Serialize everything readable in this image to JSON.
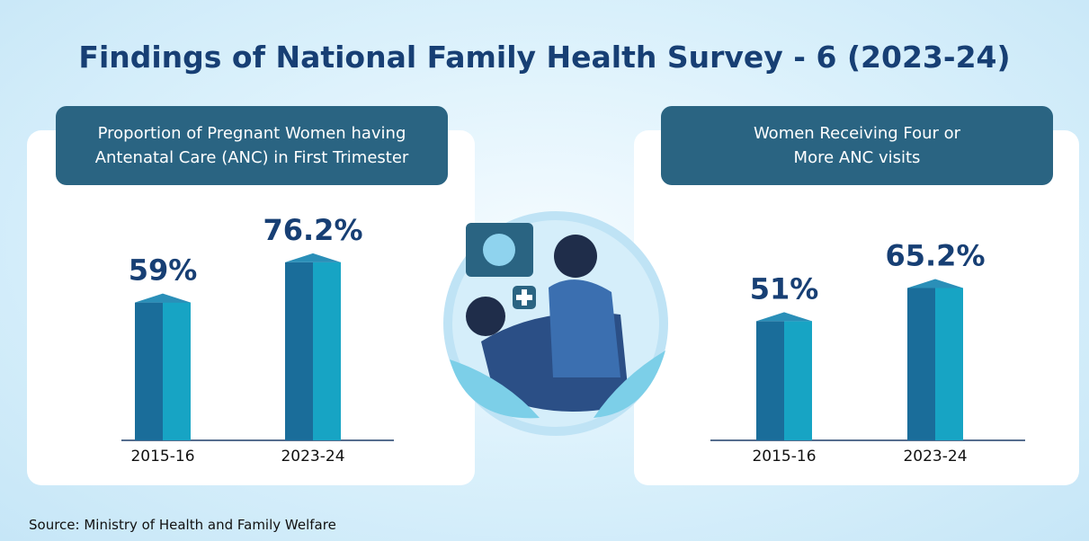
{
  "title": "Findings of National Family Health Survey - 6 (2023-24)",
  "source": "Source: Ministry of Health and Family Welfare",
  "chart_data": [
    {
      "type": "bar",
      "title": "Proportion of Pregnant Women having Antenatal Care (ANC) in First Trimester",
      "categories": [
        "2015-16",
        "2023-24"
      ],
      "values": [
        59,
        76.2
      ],
      "value_labels": [
        "59%",
        "76.2%"
      ],
      "color": "#1a6d9a"
    },
    {
      "type": "bar",
      "title": "Women Receiving Four or More ANC visits",
      "categories": [
        "2015-16",
        "2023-24"
      ],
      "values": [
        51,
        65.2
      ],
      "value_labels": [
        "51%",
        "65.2%"
      ],
      "color": "#1a6d9a"
    }
  ]
}
